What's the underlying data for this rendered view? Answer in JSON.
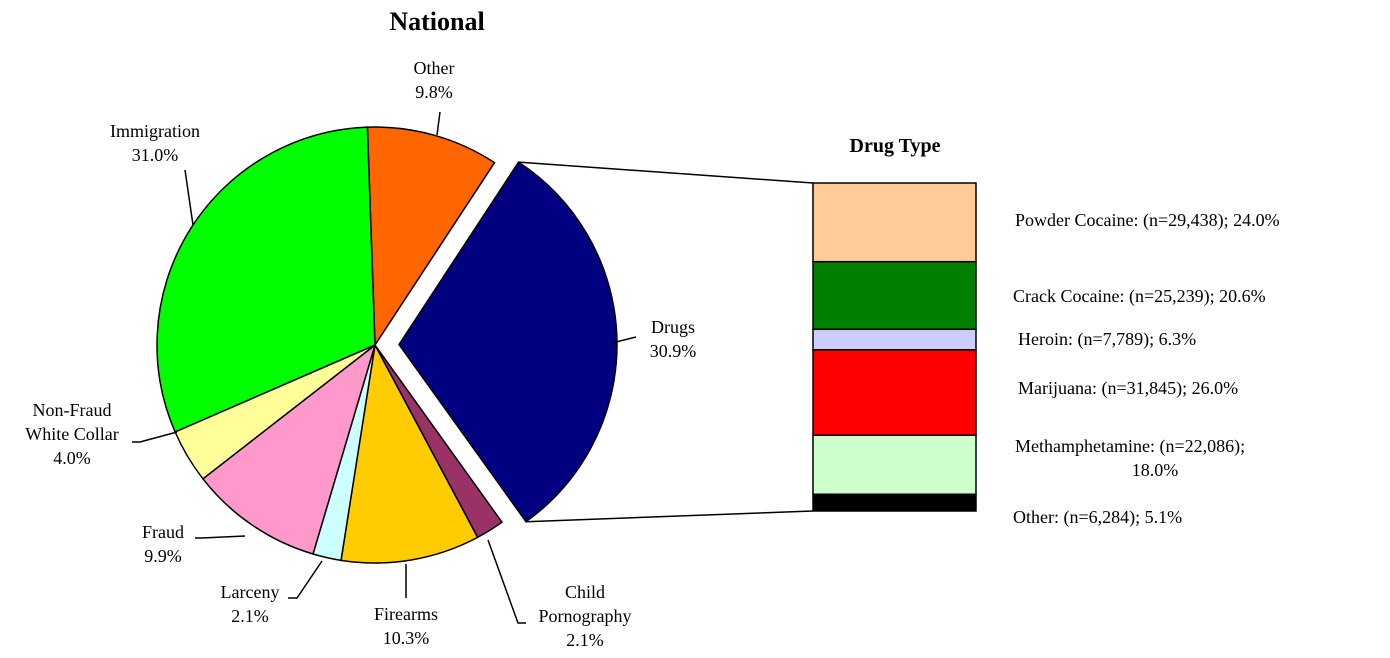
{
  "chart_data": [
    {
      "type": "pie",
      "title": "National",
      "slices": [
        {
          "label": "Other",
          "value": 9.8,
          "display": "9.8%",
          "color": "#FF6600"
        },
        {
          "label": "Drugs",
          "value": 30.9,
          "display": "30.9%",
          "color": "#000080",
          "exploded": true
        },
        {
          "label": "Child Pornography",
          "value": 2.1,
          "display": "2.1%",
          "color": "#993366"
        },
        {
          "label": "Firearms",
          "value": 10.3,
          "display": "10.3%",
          "color": "#FFCC00"
        },
        {
          "label": "Larceny",
          "value": 2.1,
          "display": "2.1%",
          "color": "#CCFFFF"
        },
        {
          "label": "Fraud",
          "value": 9.9,
          "display": "9.9%",
          "color": "#FF99CC"
        },
        {
          "label": "Non-Fraud White Collar",
          "value": 4.0,
          "display": "4.0%",
          "color": "#FFFF99"
        },
        {
          "label": "Immigration",
          "value": 31.0,
          "display": "31.0%",
          "color": "#00FF00"
        }
      ]
    },
    {
      "type": "bar",
      "stacked": true,
      "title": "Drug Type",
      "segments": [
        {
          "label": "Powder Cocaine",
          "n": "29,438",
          "value": 24.0,
          "color": "#FFCC99"
        },
        {
          "label": "Crack Cocaine",
          "n": "25,239",
          "value": 20.6,
          "color": "#008000"
        },
        {
          "label": "Heroin",
          "n": "7,789",
          "value": 6.3,
          "color": "#CCCCFF"
        },
        {
          "label": "Marijuana",
          "n": "31,845",
          "value": 26.0,
          "color": "#FF0000"
        },
        {
          "label": "Methamphetamine",
          "n": "22,086",
          "value": 18.0,
          "color": "#CCFFCC"
        },
        {
          "label": "Other",
          "n": "6,284",
          "value": 5.1,
          "color": "#000000"
        }
      ]
    }
  ]
}
